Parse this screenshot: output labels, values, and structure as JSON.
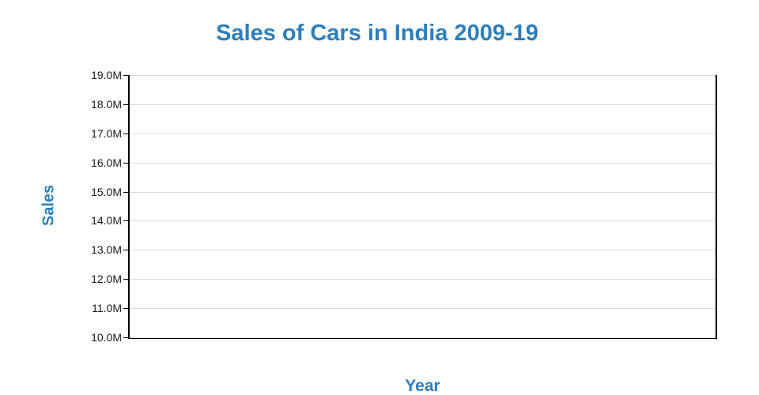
{
  "chart": {
    "colors": {
      "accent": "#2E7EBC",
      "grid": "#DBDBDB",
      "axis_line": "#000000",
      "tick_label": "#1A1A1A",
      "background": "#FFFFFF"
    }
  },
  "chart_data": {
    "type": "line",
    "title": "Sales of Cars in India 2009-19",
    "xlabel": "Year",
    "ylabel": "Sales",
    "ylim": [
      10000000,
      19000000
    ],
    "ytick_interval": 1000000,
    "yticks": [
      10000000,
      11000000,
      12000000,
      13000000,
      14000000,
      15000000,
      16000000,
      17000000,
      18000000,
      19000000
    ],
    "ytick_labels_top_to_bottom": [
      "19.0M",
      "18.0M",
      "17.0M",
      "16.0M",
      "15.0M",
      "14.0M",
      "13.0M",
      "12.0M",
      "11.0M",
      "10.0M"
    ],
    "xtick_labels": [],
    "series": [],
    "grid": "horizontal",
    "legend": "none",
    "plot_state": "empty-no-data-points-rendered"
  }
}
